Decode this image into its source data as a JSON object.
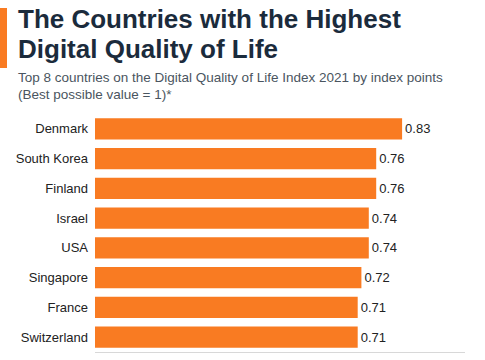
{
  "chart_data": {
    "type": "bar",
    "orientation": "horizontal",
    "title": "The Countries with the Highest Digital Quality of Life",
    "subtitle": "Top 8 countries on the Digital Quality of Life Index 2021 by index points (Best possible value = 1)*",
    "categories": [
      "Denmark",
      "South Korea",
      "Finland",
      "Israel",
      "USA",
      "Singapore",
      "France",
      "Switzerland"
    ],
    "values": [
      0.83,
      0.76,
      0.76,
      0.74,
      0.74,
      0.72,
      0.71,
      0.71
    ],
    "color": "#f97b22",
    "xlim": [
      0,
      1
    ],
    "data_labels": true,
    "tick_labels": "y",
    "grid": false
  }
}
